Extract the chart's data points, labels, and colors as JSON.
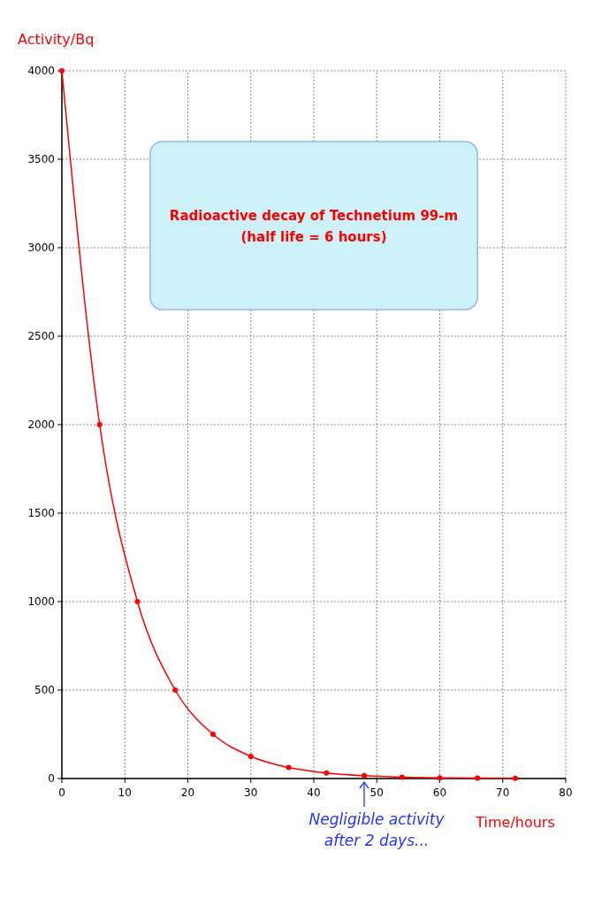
{
  "chart_data": {
    "type": "line",
    "title": "Radioactive decay of Technetium 99-m\n(half life = 6 hours)",
    "xlabel": "Time/hours",
    "ylabel": "Activity/Bq",
    "x": [
      0,
      6,
      12,
      18,
      24,
      30,
      36,
      42,
      48,
      54,
      60,
      66,
      72
    ],
    "series": [
      {
        "color": "#ff0000",
        "values": [
          4000,
          2000,
          1000,
          500,
          250,
          125,
          62,
          31,
          16,
          8,
          4,
          2,
          1
        ]
      }
    ],
    "xlim": [
      0,
      80
    ],
    "xticks": [
      0,
      10,
      20,
      30,
      40,
      50,
      60,
      70,
      80
    ],
    "ylim": [
      0,
      4000
    ],
    "yticks": [
      0,
      500,
      1000,
      1500,
      2000,
      2500,
      3000,
      3500,
      4000
    ],
    "annotations": [
      {
        "text": "Negligible activity\nafter 2 days...",
        "x": 48,
        "y": 0
      }
    ],
    "grid": true,
    "marker": "circle",
    "line_style": "solid"
  }
}
